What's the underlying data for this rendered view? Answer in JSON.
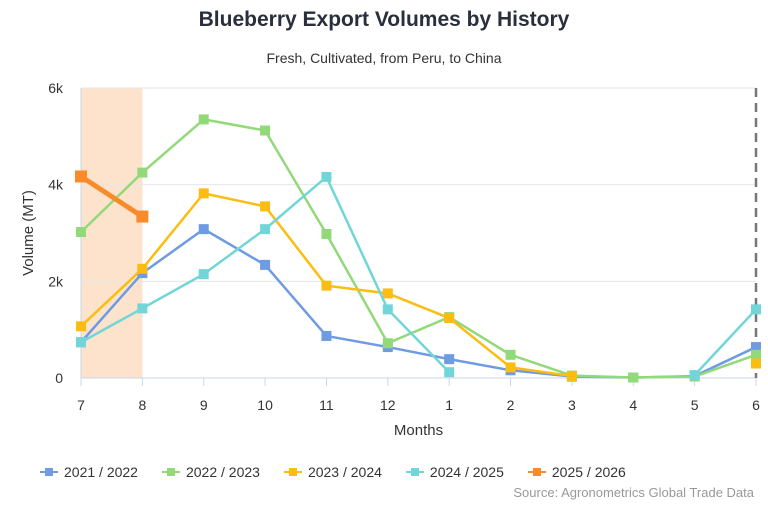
{
  "chart_data": {
    "type": "line",
    "title": "Blueberry Export Volumes by History",
    "subtitle": "Fresh, Cultivated, from Peru, to China",
    "xlabel": "Months",
    "ylabel": "Volume (MT)",
    "categories": [
      "7",
      "8",
      "9",
      "10",
      "11",
      "12",
      "1",
      "2",
      "3",
      "4",
      "5",
      "6"
    ],
    "ylim": [
      0,
      6000
    ],
    "yticks": [
      {
        "v": 0,
        "label": "0"
      },
      {
        "v": 2000,
        "label": "2k"
      },
      {
        "v": 4000,
        "label": "4k"
      },
      {
        "v": 6000,
        "label": "6k"
      }
    ],
    "grid": true,
    "legend": "bottom",
    "highlight_range": [
      "7",
      "8"
    ],
    "highlight_color": "#fde3cc",
    "marker_line_at": "6",
    "series": [
      {
        "name": "2021 / 2022",
        "color": "#6f9be3",
        "values": [
          740,
          2170,
          3080,
          2340,
          870,
          640,
          390,
          160,
          30,
          10,
          40,
          640
        ]
      },
      {
        "name": "2022 / 2023",
        "color": "#92d97a",
        "values": [
          3020,
          4250,
          5350,
          5120,
          2980,
          720,
          1260,
          480,
          50,
          10,
          30,
          480
        ]
      },
      {
        "name": "2023 / 2024",
        "color": "#fbbd12",
        "values": [
          1070,
          2260,
          3820,
          3550,
          1910,
          1750,
          1240,
          220,
          40,
          null,
          null,
          300
        ]
      },
      {
        "name": "2024 / 2025",
        "color": "#72d6d9",
        "values": [
          740,
          1440,
          2150,
          3080,
          4160,
          1420,
          120,
          null,
          null,
          null,
          60,
          1420
        ]
      },
      {
        "name": "2025 / 2026",
        "color": "#fa8b2a",
        "values": [
          4170,
          3340,
          null,
          null,
          null,
          null,
          null,
          null,
          null,
          null,
          null,
          null
        ],
        "bold": true
      }
    ]
  },
  "source": "Source: Agronometrics Global Trade Data"
}
